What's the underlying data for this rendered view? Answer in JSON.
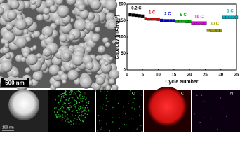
{
  "chart_data": {
    "type": "scatter",
    "xlabel": "Cycle Number",
    "ylabel": "Capacity (mAh g⁻¹)",
    "xlim": [
      0,
      35
    ],
    "xticks": [
      0,
      5,
      10,
      15,
      20,
      25,
      30,
      35
    ],
    "ylim": [
      0,
      200
    ],
    "yticks": [
      0,
      50,
      100,
      150,
      200
    ],
    "series": [
      {
        "name": "0.2 C",
        "color": "#000000",
        "x": [
          1,
          2,
          3,
          4,
          5
        ],
        "values": [
          168,
          167,
          166,
          165,
          164
        ]
      },
      {
        "name": "1 C",
        "color": "#e00000",
        "x": [
          6,
          7,
          8,
          9,
          10
        ],
        "values": [
          156,
          155,
          155,
          155,
          154
        ]
      },
      {
        "name": "2 C",
        "color": "#0000e0",
        "x": [
          11,
          12,
          13,
          14,
          15
        ],
        "values": [
          151,
          150,
          150,
          150,
          150
        ]
      },
      {
        "name": "5 C",
        "color": "#00b000",
        "x": [
          16,
          17,
          18,
          19,
          20
        ],
        "values": [
          148,
          148,
          148,
          147,
          147
        ]
      },
      {
        "name": "10 C",
        "color": "#e000e0",
        "x": [
          21,
          22,
          23,
          24,
          25
        ],
        "values": [
          143,
          143,
          143,
          143,
          143
        ]
      },
      {
        "name": "30 C",
        "color": "#a0a000",
        "x": [
          26,
          27,
          28,
          29,
          30
        ],
        "values": [
          121,
          120,
          120,
          120,
          120
        ]
      },
      {
        "name": "1 C",
        "color": "#00b0c0",
        "x": [
          31,
          32,
          33,
          34,
          35
        ],
        "values": [
          160,
          160,
          160,
          160,
          160
        ]
      }
    ]
  },
  "panels": {
    "sem_scale": "500 nm",
    "eds_scale": "100 nm",
    "eds_labels": [
      "Ti",
      "O",
      "C",
      "N"
    ]
  }
}
